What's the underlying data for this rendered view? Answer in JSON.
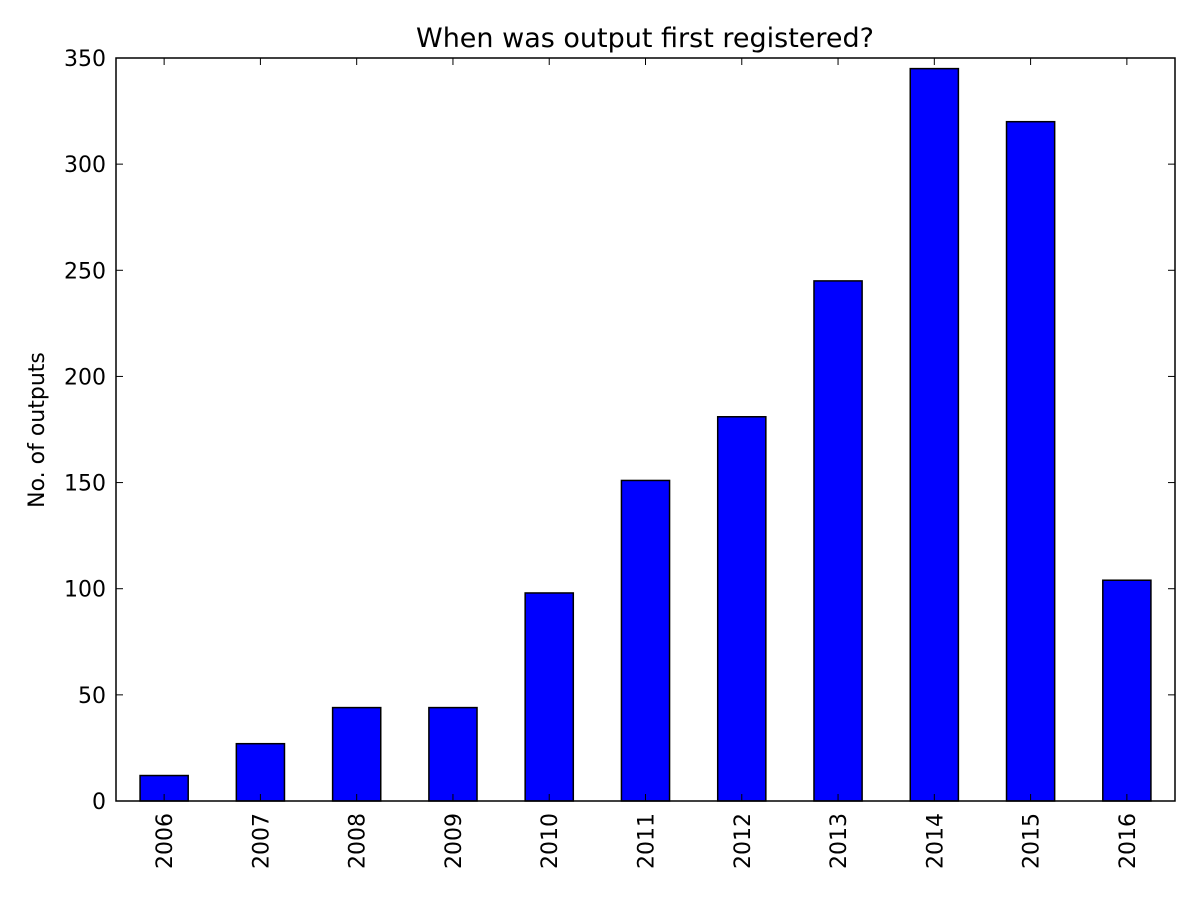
{
  "chart_data": {
    "type": "bar",
    "title": "When was output first registered?",
    "xlabel": "",
    "ylabel": "No. of outputs",
    "categories": [
      "2006",
      "2007",
      "2008",
      "2009",
      "2010",
      "2011",
      "2012",
      "2013",
      "2014",
      "2015",
      "2016"
    ],
    "values": [
      12,
      27,
      44,
      44,
      98,
      151,
      181,
      245,
      345,
      320,
      104
    ],
    "ylim": [
      0,
      350
    ],
    "yticks": [
      0,
      50,
      100,
      150,
      200,
      250,
      300,
      350
    ],
    "grid": false,
    "legend": false,
    "bar_color": "#0000ff",
    "edge_color": "#000000"
  }
}
